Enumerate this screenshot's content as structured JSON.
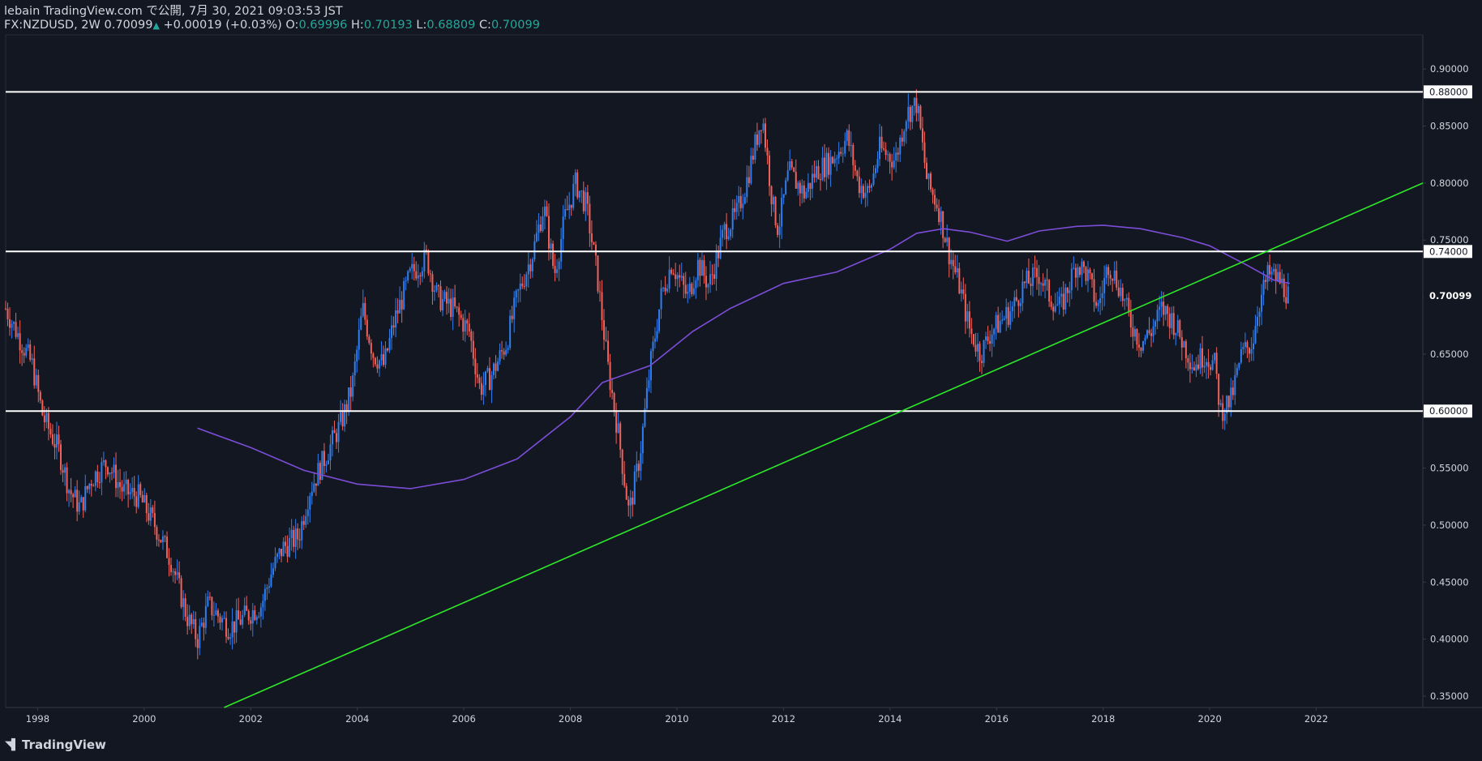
{
  "header": {
    "line1": "lebain TradingView.com で公開, 7月 30, 2021 09:03:53 JST",
    "symbol": "FX:NZDUSD, 2W",
    "last": "0.70099",
    "up_arrow": "▲",
    "change": "+0.00019 (+0.03%)",
    "o_label": "O:",
    "o_value": "0.69996",
    "h_label": "H:",
    "h_value": "0.70193",
    "l_label": "L:",
    "l_value": "0.68809",
    "c_label": "C:",
    "c_value": "0.70099"
  },
  "footer": {
    "brand": "TradingView",
    "logo_icon": "tradingview-logo-icon"
  },
  "colors": {
    "background": "#131722",
    "up": "#2f7ff0",
    "down": "#f0625a",
    "ma": "#7c4dd6",
    "trend": "#2ee82a",
    "level": "#ffffff",
    "axis_text": "#d1d4dc"
  },
  "chart_data": {
    "type": "candlestick",
    "symbol": "FX:NZDUSD",
    "interval": "2W",
    "x_range": [
      1997.4,
      2024.0
    ],
    "ylim": [
      0.34,
      0.93
    ],
    "x_ticks": [
      "1998",
      "2000",
      "2002",
      "2004",
      "2006",
      "2008",
      "2010",
      "2012",
      "2014",
      "2016",
      "2018",
      "2020",
      "2022"
    ],
    "y_ticks": [
      "0.35000",
      "0.40000",
      "0.45000",
      "0.50000",
      "0.55000",
      "0.60000",
      "0.65000",
      "0.70000",
      "0.75000",
      "0.80000",
      "0.85000",
      "0.90000"
    ],
    "horizontal_levels": [
      {
        "value": 0.88,
        "label": "0.88000"
      },
      {
        "value": 0.74,
        "label": "0.74000"
      },
      {
        "value": 0.6,
        "label": "0.60000"
      }
    ],
    "last_price": {
      "value": 0.70099,
      "label": "0.70099"
    },
    "trendline": {
      "points": [
        [
          2001.5,
          0.34
        ],
        [
          2024.0,
          0.8
        ]
      ]
    },
    "moving_average": [
      [
        2001.0,
        0.585
      ],
      [
        2002.0,
        0.568
      ],
      [
        2003.0,
        0.548
      ],
      [
        2004.0,
        0.536
      ],
      [
        2005.0,
        0.532
      ],
      [
        2006.0,
        0.54
      ],
      [
        2007.0,
        0.558
      ],
      [
        2008.0,
        0.595
      ],
      [
        2008.6,
        0.625
      ],
      [
        2009.5,
        0.64
      ],
      [
        2010.3,
        0.67
      ],
      [
        2011.0,
        0.69
      ],
      [
        2012.0,
        0.712
      ],
      [
        2013.0,
        0.722
      ],
      [
        2014.0,
        0.742
      ],
      [
        2014.5,
        0.756
      ],
      [
        2015.0,
        0.76
      ],
      [
        2015.5,
        0.757
      ],
      [
        2016.2,
        0.749
      ],
      [
        2016.8,
        0.758
      ],
      [
        2017.5,
        0.762
      ],
      [
        2018.0,
        0.763
      ],
      [
        2018.7,
        0.76
      ],
      [
        2019.5,
        0.752
      ],
      [
        2020.0,
        0.745
      ],
      [
        2020.7,
        0.728
      ],
      [
        2021.2,
        0.715
      ],
      [
        2021.5,
        0.712
      ]
    ],
    "price_path": [
      [
        1997.4,
        0.69
      ],
      [
        1997.6,
        0.67
      ],
      [
        1997.9,
        0.64
      ],
      [
        1998.1,
        0.595
      ],
      [
        1998.4,
        0.565
      ],
      [
        1998.6,
        0.53
      ],
      [
        1998.8,
        0.515
      ],
      [
        1999.0,
        0.54
      ],
      [
        1999.3,
        0.555
      ],
      [
        1999.6,
        0.53
      ],
      [
        1999.9,
        0.525
      ],
      [
        2000.2,
        0.5
      ],
      [
        2000.5,
        0.47
      ],
      [
        2000.8,
        0.42
      ],
      [
        2001.0,
        0.4
      ],
      [
        2001.2,
        0.43
      ],
      [
        2001.4,
        0.42
      ],
      [
        2001.6,
        0.41
      ],
      [
        2001.9,
        0.42
      ],
      [
        2002.2,
        0.43
      ],
      [
        2002.4,
        0.46
      ],
      [
        2002.6,
        0.48
      ],
      [
        2002.9,
        0.49
      ],
      [
        2003.1,
        0.53
      ],
      [
        2003.4,
        0.56
      ],
      [
        2003.7,
        0.59
      ],
      [
        2003.9,
        0.62
      ],
      [
        2004.1,
        0.69
      ],
      [
        2004.3,
        0.65
      ],
      [
        2004.5,
        0.64
      ],
      [
        2004.7,
        0.68
      ],
      [
        2005.0,
        0.72
      ],
      [
        2005.3,
        0.735
      ],
      [
        2005.5,
        0.7
      ],
      [
        2005.8,
        0.69
      ],
      [
        2006.1,
        0.67
      ],
      [
        2006.3,
        0.62
      ],
      [
        2006.5,
        0.63
      ],
      [
        2006.8,
        0.66
      ],
      [
        2007.0,
        0.7
      ],
      [
        2007.3,
        0.74
      ],
      [
        2007.5,
        0.78
      ],
      [
        2007.7,
        0.72
      ],
      [
        2007.9,
        0.77
      ],
      [
        2008.1,
        0.8
      ],
      [
        2008.3,
        0.78
      ],
      [
        2008.5,
        0.72
      ],
      [
        2008.7,
        0.64
      ],
      [
        2008.9,
        0.58
      ],
      [
        2009.1,
        0.51
      ],
      [
        2009.3,
        0.56
      ],
      [
        2009.5,
        0.64
      ],
      [
        2009.7,
        0.7
      ],
      [
        2009.9,
        0.73
      ],
      [
        2010.2,
        0.7
      ],
      [
        2010.4,
        0.73
      ],
      [
        2010.6,
        0.71
      ],
      [
        2010.9,
        0.76
      ],
      [
        2011.1,
        0.77
      ],
      [
        2011.3,
        0.8
      ],
      [
        2011.6,
        0.86
      ],
      [
        2011.8,
        0.78
      ],
      [
        2011.9,
        0.76
      ],
      [
        2012.1,
        0.81
      ],
      [
        2012.4,
        0.79
      ],
      [
        2012.6,
        0.81
      ],
      [
        2012.9,
        0.82
      ],
      [
        2013.2,
        0.84
      ],
      [
        2013.4,
        0.8
      ],
      [
        2013.6,
        0.79
      ],
      [
        2013.8,
        0.83
      ],
      [
        2014.1,
        0.82
      ],
      [
        2014.3,
        0.86
      ],
      [
        2014.5,
        0.87
      ],
      [
        2014.7,
        0.8
      ],
      [
        2014.9,
        0.78
      ],
      [
        2015.1,
        0.74
      ],
      [
        2015.3,
        0.71
      ],
      [
        2015.5,
        0.67
      ],
      [
        2015.7,
        0.65
      ],
      [
        2015.9,
        0.67
      ],
      [
        2016.1,
        0.68
      ],
      [
        2016.3,
        0.69
      ],
      [
        2016.5,
        0.71
      ],
      [
        2016.8,
        0.72
      ],
      [
        2017.0,
        0.7
      ],
      [
        2017.2,
        0.69
      ],
      [
        2017.5,
        0.73
      ],
      [
        2017.7,
        0.72
      ],
      [
        2017.9,
        0.69
      ],
      [
        2018.1,
        0.73
      ],
      [
        2018.3,
        0.71
      ],
      [
        2018.5,
        0.68
      ],
      [
        2018.7,
        0.66
      ],
      [
        2018.9,
        0.67
      ],
      [
        2019.1,
        0.69
      ],
      [
        2019.3,
        0.68
      ],
      [
        2019.5,
        0.66
      ],
      [
        2019.7,
        0.64
      ],
      [
        2019.9,
        0.65
      ],
      [
        2020.1,
        0.64
      ],
      [
        2020.2,
        0.6
      ],
      [
        2020.4,
        0.61
      ],
      [
        2020.6,
        0.65
      ],
      [
        2020.8,
        0.66
      ],
      [
        2020.9,
        0.69
      ],
      [
        2021.1,
        0.72
      ],
      [
        2021.3,
        0.715
      ],
      [
        2021.5,
        0.7
      ]
    ]
  }
}
